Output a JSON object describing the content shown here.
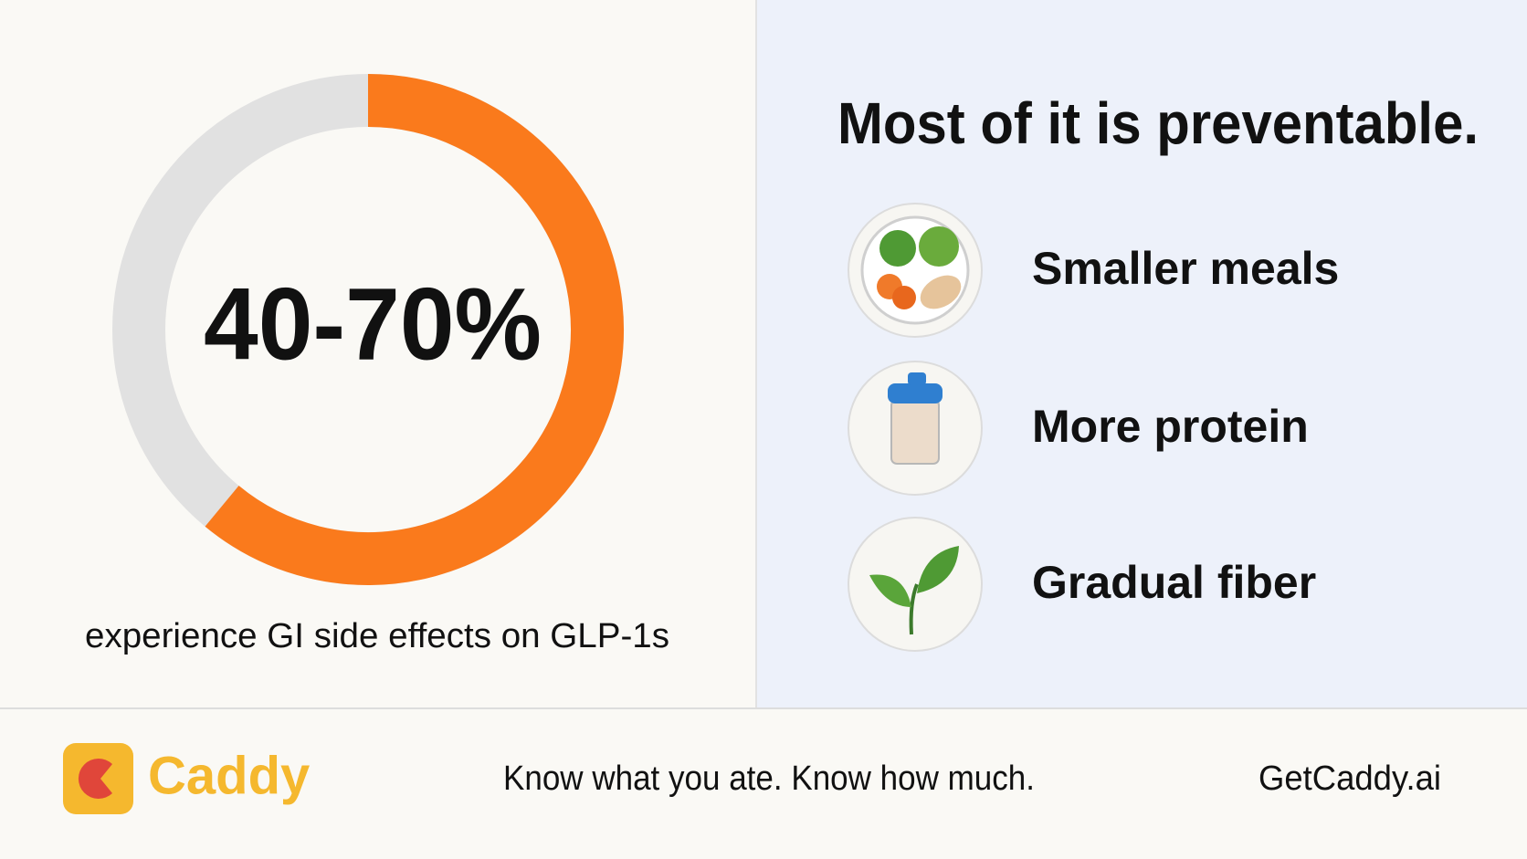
{
  "stat": {
    "value_label": "40-70%",
    "caption": "experience GI side effects on GLP-1s",
    "ring_percent": 61
  },
  "panel": {
    "title": "Most of it is preventable.",
    "items": [
      "Smaller meals",
      "More protein",
      "Gradual fiber"
    ]
  },
  "footer": {
    "brand": "Caddy",
    "tagline": "Know what you ate. Know how much.",
    "url": "GetCaddy.ai"
  }
}
